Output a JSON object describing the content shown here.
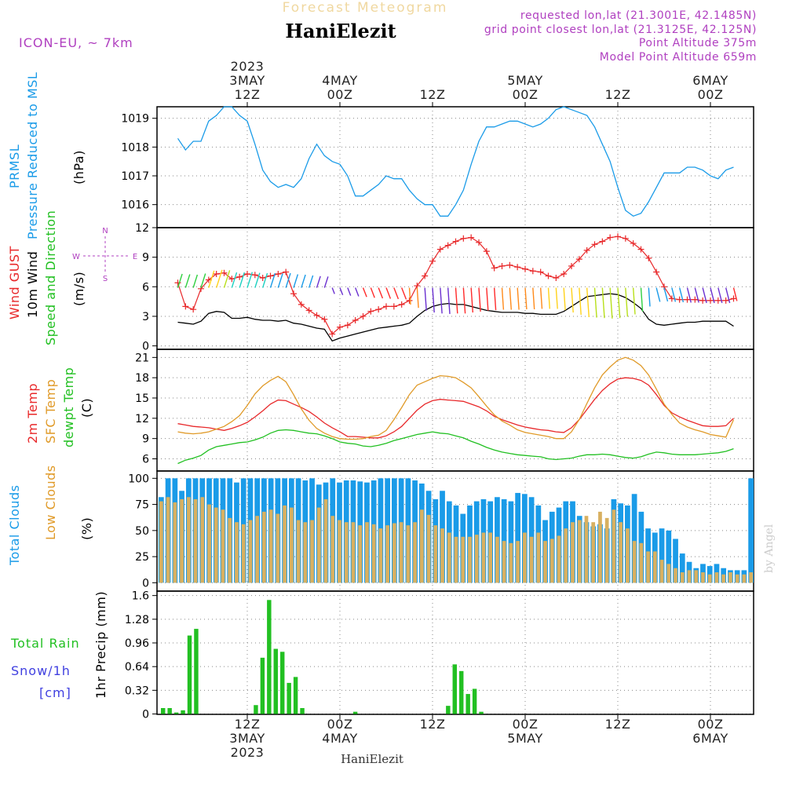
{
  "header": {
    "product": "Forecast Meteogram",
    "location": "HaniElezit",
    "model": "ICON-EU, ~ 7km",
    "requested": "requested lon,lat (21.3001E, 42.1485N)",
    "gridpoint": "grid point closest lon,lat (21.3125E, 42.125N)",
    "point_alt": "Point Altitude 375m",
    "model_alt": "Model Point Altitude 659m",
    "watermark": "by Angel",
    "footer": "HaniElezit"
  },
  "colors": {
    "pressure": "#1a9be8",
    "gust": "#e8282a",
    "wind10m": "#000000",
    "temp2m": "#e8282a",
    "sfctemp": "#e09a28",
    "dewpt": "#22c022",
    "total_clouds": "#1a9be8",
    "low_clouds": "#d8b060",
    "rain": "#22c022",
    "snow": "#4040e0",
    "purple": "#b040c0"
  },
  "time_axis": {
    "top": [
      {
        "t": 9,
        "lines": [
          "2023",
          "3MAY",
          "12Z"
        ]
      },
      {
        "t": 21,
        "lines": [
          "4MAY",
          "00Z"
        ]
      },
      {
        "t": 33,
        "lines": [
          "12Z"
        ]
      },
      {
        "t": 45,
        "lines": [
          "5MAY",
          "00Z"
        ]
      },
      {
        "t": 57,
        "lines": [
          "12Z"
        ]
      },
      {
        "t": 69,
        "lines": [
          "6MAY",
          "00Z"
        ]
      }
    ],
    "bottom": [
      {
        "t": 9,
        "lines": [
          "12Z",
          "3MAY",
          "2023"
        ]
      },
      {
        "t": 21,
        "lines": [
          "00Z",
          "4MAY"
        ]
      },
      {
        "t": 33,
        "lines": [
          "12Z"
        ]
      },
      {
        "t": 45,
        "lines": [
          "00Z",
          "5MAY"
        ]
      },
      {
        "t": 57,
        "lines": [
          "12Z"
        ]
      },
      {
        "t": 69,
        "lines": [
          "00Z",
          "6MAY"
        ]
      }
    ]
  },
  "panels": {
    "pressure": {
      "labels": [
        "PRMSL",
        "Pressure Reduced to MSL"
      ],
      "unit": "(hPa)",
      "ticks": [
        "1016",
        "1017",
        "1018",
        "1019"
      ]
    },
    "wind": {
      "labels": [
        "Wind GUST",
        "10m Wind",
        "Speed and Direction"
      ],
      "unit": "(m/s)",
      "ticks": [
        "0",
        "3",
        "6",
        "9",
        "12"
      ],
      "compass_n": "N",
      "compass_s": "S",
      "compass_w": "W",
      "compass_e": "E"
    },
    "temp": {
      "labels": [
        "2m Temp",
        "SFC Temp",
        "dewpt Temp"
      ],
      "unit": "(C)",
      "ticks": [
        "6",
        "9",
        "12",
        "15",
        "18",
        "21"
      ]
    },
    "clouds": {
      "labels": [
        "Total Clouds",
        "Low Clouds"
      ],
      "unit": "(%)",
      "ticks": [
        "0",
        "25",
        "50",
        "75",
        "100"
      ]
    },
    "precip": {
      "labels": [
        "Total Rain",
        "Snow/1h",
        "[cm]"
      ],
      "unit": "1hr Precip (mm)",
      "ticks": [
        "0",
        "0.32",
        "0.64",
        "0.96",
        "1.28",
        "1.6"
      ]
    }
  },
  "chart_data": [
    {
      "type": "line",
      "title": "PRMSL Pressure Reduced to MSL",
      "ylabel": "hPa",
      "xlabel": "hours from 3MAY 03Z",
      "ylim": [
        1015.2,
        1019.4
      ],
      "x_step_hours": 1,
      "series": [
        {
          "name": "PRMSL",
          "values": [
            1018.3,
            1017.9,
            1018.2,
            1018.2,
            1018.9,
            1019.1,
            1019.4,
            1019.4,
            1019.1,
            1018.9,
            1018.1,
            1017.2,
            1016.8,
            1016.6,
            1016.7,
            1016.6,
            1016.9,
            1017.6,
            1018.1,
            1017.7,
            1017.5,
            1017.4,
            1017.0,
            1016.3,
            1016.3,
            1016.5,
            1016.7,
            1017.0,
            1016.9,
            1016.9,
            1016.5,
            1016.2,
            1016.0,
            1016.0,
            1015.6,
            1015.6,
            1016.0,
            1016.5,
            1017.4,
            1018.2,
            1018.7,
            1018.7,
            1018.8,
            1018.9,
            1018.9,
            1018.8,
            1018.7,
            1018.8,
            1019.0,
            1019.3,
            1019.4,
            1019.3,
            1019.2,
            1019.1,
            1018.7,
            1018.1,
            1017.5,
            1016.6,
            1015.8,
            1015.6,
            1015.7,
            1016.1,
            1016.6,
            1017.1,
            1017.1,
            1017.1,
            1017.3,
            1017.3,
            1017.2,
            1017.0,
            1016.9,
            1017.2,
            1017.3
          ]
        }
      ]
    },
    {
      "type": "line",
      "title": "Wind GUST and 10m Wind Speed",
      "ylabel": "m/s",
      "ylim": [
        0,
        12
      ],
      "series": [
        {
          "name": "Wind GUST",
          "values": [
            6.4,
            4.0,
            3.7,
            5.8,
            6.7,
            7.3,
            7.4,
            6.8,
            7.0,
            7.3,
            7.2,
            6.9,
            7.1,
            7.3,
            7.5,
            5.3,
            4.2,
            3.6,
            3.1,
            2.7,
            1.2,
            1.9,
            2.1,
            2.6,
            3.0,
            3.5,
            3.7,
            4.0,
            4.0,
            4.2,
            4.6,
            6.1,
            7.1,
            8.6,
            9.8,
            10.2,
            10.6,
            10.9,
            11.0,
            10.5,
            9.6,
            7.9,
            8.1,
            8.2,
            8.0,
            7.8,
            7.6,
            7.5,
            7.1,
            6.9,
            7.3,
            8.1,
            8.8,
            9.7,
            10.3,
            10.6,
            11.0,
            11.1,
            10.9,
            10.4,
            9.8,
            8.9,
            7.5,
            6.0,
            4.8,
            4.7,
            4.7,
            4.7,
            4.6,
            4.6,
            4.6,
            4.6,
            4.8
          ]
        },
        {
          "name": "10m Wind",
          "values": [
            2.4,
            2.3,
            2.2,
            2.5,
            3.3,
            3.5,
            3.4,
            2.8,
            2.8,
            2.9,
            2.7,
            2.6,
            2.6,
            2.5,
            2.6,
            2.3,
            2.2,
            2.0,
            1.8,
            1.7,
            0.5,
            0.8,
            1.0,
            1.2,
            1.4,
            1.6,
            1.8,
            1.9,
            2.0,
            2.1,
            2.3,
            3.0,
            3.6,
            4.0,
            4.2,
            4.3,
            4.2,
            4.2,
            4.0,
            3.8,
            3.6,
            3.5,
            3.4,
            3.4,
            3.4,
            3.3,
            3.3,
            3.2,
            3.2,
            3.2,
            3.5,
            4.0,
            4.5,
            5.0,
            5.1,
            5.2,
            5.3,
            5.2,
            4.9,
            4.4,
            3.8,
            2.7,
            2.2,
            2.1,
            2.2,
            2.3,
            2.4,
            2.4,
            2.5,
            2.5,
            2.5,
            2.5,
            2.0
          ]
        }
      ]
    },
    {
      "type": "line",
      "title": "2m Temp / SFC Temp / dewpt Temp",
      "ylabel": "C",
      "ylim": [
        5,
        22
      ],
      "series": [
        {
          "name": "2m Temp",
          "values": [
            11.2,
            11.0,
            10.8,
            10.7,
            10.6,
            10.4,
            10.2,
            10.5,
            10.9,
            11.4,
            12.2,
            13.1,
            14.1,
            14.7,
            14.6,
            14.1,
            13.6,
            13.0,
            12.2,
            11.3,
            10.6,
            10.0,
            9.3,
            9.3,
            9.2,
            9.1,
            9.1,
            9.4,
            10.0,
            10.8,
            12.0,
            13.2,
            14.1,
            14.6,
            14.8,
            14.7,
            14.6,
            14.5,
            14.1,
            13.7,
            13.1,
            12.3,
            11.8,
            11.4,
            11.0,
            10.7,
            10.5,
            10.3,
            10.2,
            10.0,
            9.9,
            10.6,
            11.8,
            13.3,
            14.8,
            16.1,
            17.1,
            17.8,
            18.0,
            17.9,
            17.6,
            16.9,
            15.5,
            13.9,
            12.8,
            12.2,
            11.7,
            11.3,
            10.9,
            10.8,
            10.8,
            10.9,
            12.0
          ]
        },
        {
          "name": "SFC Temp",
          "values": [
            10.0,
            9.8,
            9.7,
            9.8,
            10.0,
            10.4,
            10.8,
            11.5,
            12.4,
            13.9,
            15.6,
            16.8,
            17.6,
            18.2,
            17.4,
            15.5,
            13.4,
            11.7,
            10.5,
            9.8,
            9.3,
            9.0,
            8.9,
            8.9,
            9.0,
            9.3,
            9.5,
            10.2,
            11.8,
            13.6,
            15.5,
            16.9,
            17.4,
            17.9,
            18.3,
            18.2,
            18.0,
            17.3,
            16.5,
            15.2,
            13.8,
            12.5,
            11.6,
            11.0,
            10.3,
            9.9,
            9.7,
            9.5,
            9.3,
            9.0,
            9.0,
            10.0,
            11.8,
            14.2,
            16.5,
            18.4,
            19.6,
            20.6,
            21.0,
            20.6,
            19.8,
            18.4,
            16.3,
            14.1,
            12.6,
            11.3,
            10.7,
            10.3,
            10.0,
            9.6,
            9.4,
            9.2,
            11.8
          ]
        },
        {
          "name": "dewpt Temp",
          "values": [
            5.3,
            5.8,
            6.1,
            6.5,
            7.3,
            7.8,
            8.0,
            8.2,
            8.4,
            8.5,
            8.8,
            9.2,
            9.8,
            10.2,
            10.3,
            10.2,
            10.0,
            9.8,
            9.7,
            9.4,
            9.0,
            8.5,
            8.3,
            8.2,
            7.9,
            7.8,
            8.0,
            8.3,
            8.7,
            9.0,
            9.3,
            9.6,
            9.8,
            10.0,
            9.8,
            9.7,
            9.4,
            9.1,
            8.6,
            8.2,
            7.7,
            7.3,
            7.0,
            6.8,
            6.6,
            6.5,
            6.4,
            6.3,
            6.0,
            5.9,
            6.0,
            6.1,
            6.4,
            6.6,
            6.6,
            6.7,
            6.6,
            6.4,
            6.2,
            6.1,
            6.3,
            6.7,
            7.0,
            6.9,
            6.7,
            6.6,
            6.6,
            6.6,
            6.7,
            6.8,
            6.9,
            7.1,
            7.5
          ]
        }
      ]
    },
    {
      "type": "bar",
      "title": "Total Clouds / Low Clouds",
      "ylabel": "%",
      "ylim": [
        0,
        100
      ],
      "series": [
        {
          "name": "Total Clouds",
          "values": [
            82,
            100,
            100,
            88,
            100,
            100,
            100,
            100,
            100,
            100,
            100,
            96,
            100,
            100,
            100,
            100,
            100,
            100,
            100,
            100,
            100,
            98,
            100,
            94,
            96,
            100,
            96,
            98,
            98,
            97,
            96,
            98,
            100,
            100,
            100,
            100,
            100,
            98,
            95,
            88,
            80,
            88,
            78,
            74,
            66,
            74,
            78,
            80,
            78,
            82,
            80,
            78,
            86,
            85,
            82,
            74,
            60,
            68,
            72,
            78,
            78,
            64,
            58,
            54,
            56,
            52,
            80,
            76,
            74,
            85,
            68,
            52,
            48,
            52,
            50,
            42,
            28,
            20,
            14,
            18,
            16,
            18,
            14,
            12,
            12,
            12,
            100
          ]
        },
        {
          "name": "Low Clouds",
          "values": [
            78,
            82,
            77,
            80,
            82,
            80,
            82,
            75,
            72,
            70,
            62,
            58,
            56,
            60,
            64,
            68,
            70,
            66,
            74,
            72,
            60,
            58,
            60,
            72,
            80,
            64,
            60,
            58,
            58,
            55,
            58,
            56,
            52,
            55,
            57,
            58,
            55,
            58,
            70,
            65,
            55,
            52,
            48,
            44,
            44,
            44,
            46,
            48,
            48,
            44,
            40,
            38,
            40,
            48,
            44,
            48,
            40,
            42,
            45,
            52,
            58,
            60,
            64,
            58,
            68,
            62,
            70,
            58,
            52,
            40,
            38,
            30,
            30,
            22,
            18,
            14,
            10,
            12,
            12,
            10,
            8,
            10,
            8,
            10,
            8,
            8,
            10
          ]
        }
      ]
    },
    {
      "type": "bar",
      "title": "1hr Precip",
      "ylabel": "mm",
      "ylim": [
        0,
        1.6
      ],
      "series": [
        {
          "name": "Total Rain",
          "values": [
            0.08,
            0.08,
            0.02,
            0.05,
            1.06,
            1.15,
            0,
            0,
            0,
            0,
            0,
            0,
            0,
            0,
            0.12,
            0.76,
            1.54,
            0.88,
            0.84,
            0.42,
            0.5,
            0.08,
            0,
            0,
            0,
            0,
            0,
            0,
            0,
            0.03,
            0,
            0,
            0,
            0,
            0,
            0,
            0,
            0,
            0,
            0,
            0,
            0,
            0,
            0.11,
            0.67,
            0.58,
            0.27,
            0.34,
            0.03,
            0,
            0,
            0,
            0,
            0,
            0,
            0,
            0,
            0,
            0,
            0,
            0,
            0,
            0,
            0,
            0,
            0,
            0,
            0,
            0,
            0,
            0,
            0,
            0,
            0,
            0,
            0,
            0,
            0,
            0,
            0,
            0,
            0,
            0,
            0,
            0,
            0,
            0,
            0,
            0,
            0
          ]
        }
      ]
    }
  ]
}
